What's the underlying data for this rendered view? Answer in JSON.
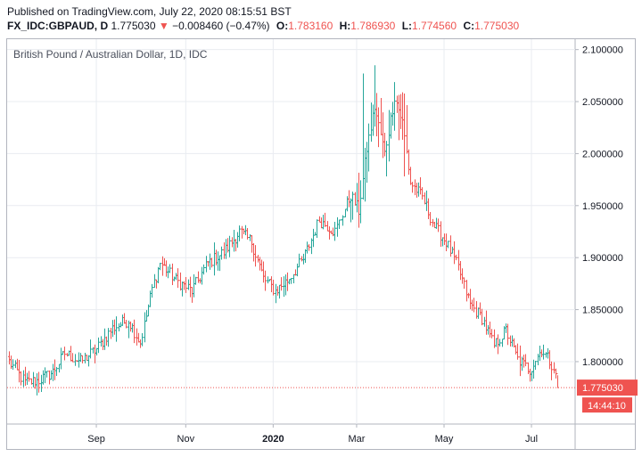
{
  "header": {
    "published": "Published on TradingView.com, July 22, 2020 08:15:51 BST",
    "symbol": "FX_IDC:GBPAUD, D",
    "last": "1.775030",
    "change_arrow": "▼",
    "change": "−0.008460 (−0.47%)",
    "o_label": "O:",
    "o": "1.783160",
    "h_label": "H:",
    "h": "1.786930",
    "l_label": "L:",
    "l": "1.774560",
    "c_label": "C:",
    "c": "1.775030"
  },
  "colors": {
    "up": "#26a69a",
    "down": "#ef5350",
    "grid": "#e9ecf1",
    "axis": "#b2b5be"
  },
  "chart_data": {
    "type": "ohlc",
    "title": "British Pound / Australian Dollar, 1D, IDC",
    "y_ticks": [
      "2.100000",
      "2.050000",
      "2.000000",
      "1.950000",
      "1.900000",
      "1.850000",
      "1.800000"
    ],
    "ylim": [
      1.74,
      2.11
    ],
    "x_ticks": [
      {
        "label": "Sep",
        "bar": 44,
        "bold": false
      },
      {
        "label": "Nov",
        "bar": 89,
        "bold": false
      },
      {
        "label": "2020",
        "bar": 133,
        "bold": true
      },
      {
        "label": "Mar",
        "bar": 175,
        "bold": false
      },
      {
        "label": "May",
        "bar": 219,
        "bold": false
      },
      {
        "label": "Jul",
        "bar": 263,
        "bold": false
      }
    ],
    "price_label": "1.775030",
    "countdown_label": "14:44:10",
    "anchors": [
      [
        0,
        1.8
      ],
      [
        8,
        1.78
      ],
      [
        15,
        1.782
      ],
      [
        22,
        1.79
      ],
      [
        28,
        1.808
      ],
      [
        36,
        1.8
      ],
      [
        44,
        1.812
      ],
      [
        52,
        1.832
      ],
      [
        60,
        1.84
      ],
      [
        66,
        1.818
      ],
      [
        72,
        1.87
      ],
      [
        76,
        1.895
      ],
      [
        84,
        1.878
      ],
      [
        92,
        1.868
      ],
      [
        100,
        1.895
      ],
      [
        108,
        1.905
      ],
      [
        116,
        1.925
      ],
      [
        122,
        1.915
      ],
      [
        128,
        1.88
      ],
      [
        134,
        1.868
      ],
      [
        140,
        1.878
      ],
      [
        148,
        1.898
      ],
      [
        156,
        1.936
      ],
      [
        164,
        1.925
      ],
      [
        172,
        1.96
      ],
      [
        176,
        1.945
      ],
      [
        180,
        2.005
      ],
      [
        184,
        2.045
      ],
      [
        189,
        2.0
      ],
      [
        194,
        2.055
      ],
      [
        198,
        2.03
      ],
      [
        202,
        1.972
      ],
      [
        208,
        1.958
      ],
      [
        214,
        1.93
      ],
      [
        220,
        1.915
      ],
      [
        226,
        1.89
      ],
      [
        232,
        1.855
      ],
      [
        238,
        1.842
      ],
      [
        244,
        1.815
      ],
      [
        250,
        1.83
      ],
      [
        256,
        1.802
      ],
      [
        262,
        1.792
      ],
      [
        268,
        1.812
      ],
      [
        274,
        1.795
      ],
      [
        276,
        1.775
      ]
    ]
  }
}
